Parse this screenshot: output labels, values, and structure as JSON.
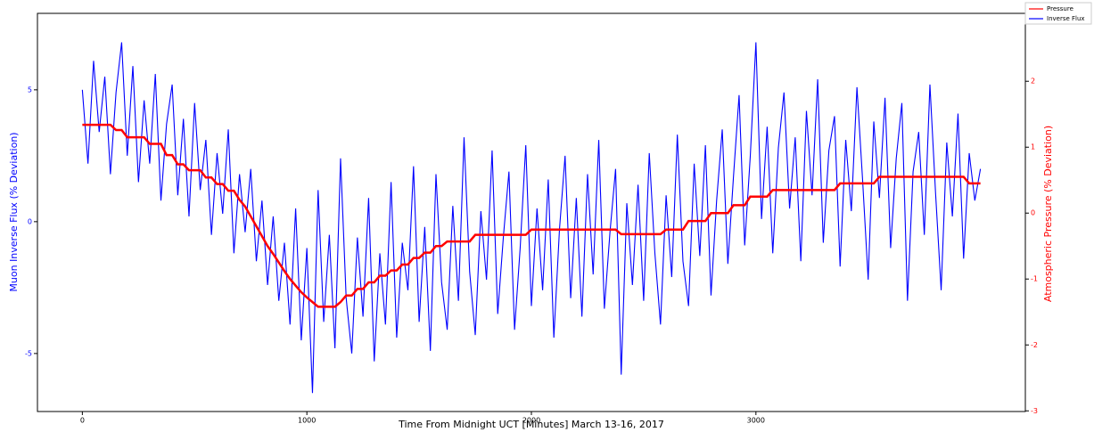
{
  "chart_data": {
    "type": "line",
    "xlabel": "Time From Midnight UCT [Minutes] March 13-16, 2017",
    "ylabel": "Muon Inverse Flux (% Deviation)",
    "y2label": "Atmospheric Pressure (% Deviation)",
    "xlim": [
      -200,
      4200
    ],
    "xticks": [
      0,
      1000,
      2000,
      3000
    ],
    "ylim": [
      -7.2,
      7.9
    ],
    "yticks": [
      -5,
      0,
      5
    ],
    "y2lim": [
      -3.01,
      3.03
    ],
    "y2ticks": [
      -3,
      -2,
      -1,
      0,
      1,
      2
    ],
    "ycolor": "#0000ff",
    "y2color": "#ff0000",
    "x": [
      0,
      25,
      50,
      75,
      100,
      125,
      150,
      175,
      200,
      225,
      250,
      275,
      300,
      325,
      350,
      375,
      400,
      425,
      450,
      475,
      500,
      525,
      550,
      575,
      600,
      625,
      650,
      675,
      700,
      725,
      750,
      775,
      800,
      825,
      850,
      875,
      900,
      925,
      950,
      975,
      1000,
      1025,
      1050,
      1075,
      1100,
      1125,
      1150,
      1175,
      1200,
      1225,
      1250,
      1275,
      1300,
      1325,
      1350,
      1375,
      1400,
      1425,
      1450,
      1475,
      1500,
      1525,
      1550,
      1575,
      1600,
      1625,
      1650,
      1675,
      1700,
      1725,
      1750,
      1775,
      1800,
      1825,
      1850,
      1875,
      1900,
      1925,
      1950,
      1975,
      2000,
      2025,
      2050,
      2075,
      2100,
      2125,
      2150,
      2175,
      2200,
      2225,
      2250,
      2275,
      2300,
      2325,
      2350,
      2375,
      2400,
      2425,
      2450,
      2475,
      2500,
      2525,
      2550,
      2575,
      2600,
      2625,
      2650,
      2675,
      2700,
      2725,
      2750,
      2775,
      2800,
      2825,
      2850,
      2875,
      2900,
      2925,
      2950,
      2975,
      3000,
      3025,
      3050,
      3075,
      3100,
      3125,
      3150,
      3175,
      3200,
      3225,
      3250,
      3275,
      3300,
      3325,
      3350,
      3375,
      3400,
      3425,
      3450,
      3475,
      3500,
      3525,
      3550,
      3575,
      3600,
      3625,
      3650,
      3675,
      3700,
      3725,
      3750,
      3775,
      3800,
      3825,
      3850,
      3875,
      3900,
      3925,
      3950,
      3975,
      4000
    ],
    "series": [
      {
        "name": "Pressure",
        "color": "#ff0000",
        "axis": "y2",
        "values": [
          1.34,
          1.34,
          1.34,
          1.34,
          1.34,
          1.34,
          1.26,
          1.26,
          1.15,
          1.15,
          1.15,
          1.15,
          1.05,
          1.05,
          1.05,
          0.88,
          0.88,
          0.74,
          0.74,
          0.65,
          0.65,
          0.65,
          0.54,
          0.54,
          0.44,
          0.44,
          0.34,
          0.34,
          0.2,
          0.1,
          -0.05,
          -0.2,
          -0.35,
          -0.5,
          -0.62,
          -0.75,
          -0.88,
          -1.0,
          -1.1,
          -1.2,
          -1.28,
          -1.35,
          -1.42,
          -1.42,
          -1.42,
          -1.42,
          -1.35,
          -1.25,
          -1.25,
          -1.15,
          -1.15,
          -1.05,
          -1.05,
          -0.95,
          -0.95,
          -0.87,
          -0.87,
          -0.78,
          -0.78,
          -0.68,
          -0.68,
          -0.6,
          -0.6,
          -0.5,
          -0.5,
          -0.43,
          -0.43,
          -0.43,
          -0.43,
          -0.43,
          -0.33,
          -0.33,
          -0.33,
          -0.33,
          -0.33,
          -0.33,
          -0.33,
          -0.33,
          -0.33,
          -0.33,
          -0.25,
          -0.25,
          -0.25,
          -0.25,
          -0.25,
          -0.25,
          -0.25,
          -0.25,
          -0.25,
          -0.25,
          -0.25,
          -0.25,
          -0.25,
          -0.25,
          -0.25,
          -0.25,
          -0.32,
          -0.32,
          -0.32,
          -0.32,
          -0.32,
          -0.32,
          -0.32,
          -0.32,
          -0.25,
          -0.25,
          -0.25,
          -0.25,
          -0.12,
          -0.12,
          -0.12,
          -0.12,
          0.0,
          0.0,
          0.0,
          0.0,
          0.12,
          0.12,
          0.12,
          0.25,
          0.25,
          0.25,
          0.25,
          0.35,
          0.35,
          0.35,
          0.35,
          0.35,
          0.35,
          0.35,
          0.35,
          0.35,
          0.35,
          0.35,
          0.35,
          0.45,
          0.45,
          0.45,
          0.45,
          0.45,
          0.45,
          0.45,
          0.55,
          0.55,
          0.55,
          0.55,
          0.55,
          0.55,
          0.55,
          0.55,
          0.55,
          0.55,
          0.55,
          0.55,
          0.55,
          0.55,
          0.55,
          0.55,
          0.45,
          0.45,
          0.45
        ]
      },
      {
        "name": "Inverse Flux",
        "color": "#0000ff",
        "values": [
          5.0,
          2.2,
          6.1,
          3.4,
          5.5,
          1.8,
          4.9,
          6.8,
          2.5,
          5.9,
          1.5,
          4.6,
          2.2,
          5.6,
          0.8,
          3.7,
          5.2,
          1.0,
          3.9,
          0.2,
          4.5,
          1.2,
          3.1,
          -0.5,
          2.6,
          0.3,
          3.5,
          -1.2,
          1.8,
          -0.4,
          2.0,
          -1.5,
          0.8,
          -2.4,
          0.2,
          -3.0,
          -0.8,
          -3.9,
          0.5,
          -4.5,
          -1.0,
          -6.5,
          1.2,
          -3.8,
          -0.5,
          -4.8,
          2.4,
          -2.9,
          -5.0,
          -0.6,
          -3.6,
          0.9,
          -5.3,
          -1.2,
          -3.9,
          1.5,
          -4.4,
          -0.8,
          -2.6,
          2.1,
          -3.8,
          -0.2,
          -4.9,
          1.8,
          -2.3,
          -4.1,
          0.6,
          -3.0,
          3.2,
          -1.9,
          -4.3,
          0.4,
          -2.2,
          2.7,
          -3.5,
          -0.6,
          1.9,
          -4.1,
          -1.0,
          2.9,
          -3.2,
          0.5,
          -2.6,
          1.6,
          -4.4,
          -0.3,
          2.5,
          -2.9,
          0.9,
          -3.6,
          1.8,
          -2.0,
          3.1,
          -3.3,
          -0.4,
          2.0,
          -5.8,
          0.7,
          -2.4,
          1.4,
          -3.0,
          2.6,
          -1.2,
          -3.9,
          1.0,
          -2.1,
          3.3,
          -1.5,
          -3.2,
          2.2,
          -1.3,
          2.9,
          -2.8,
          0.8,
          3.5,
          -1.6,
          1.7,
          4.8,
          -0.9,
          2.5,
          6.8,
          0.1,
          3.6,
          -1.2,
          2.8,
          4.9,
          0.5,
          3.2,
          -1.5,
          4.2,
          1.0,
          5.4,
          -0.8,
          2.7,
          4.0,
          -1.7,
          3.1,
          0.4,
          5.1,
          1.6,
          -2.2,
          3.8,
          0.9,
          4.7,
          -1.0,
          2.4,
          4.5,
          -3.0,
          1.9,
          3.4,
          -0.5,
          5.2,
          1.1,
          -2.6,
          3.0,
          0.2,
          4.1,
          -1.4,
          2.6,
          0.8,
          2.0
        ]
      }
    ]
  }
}
